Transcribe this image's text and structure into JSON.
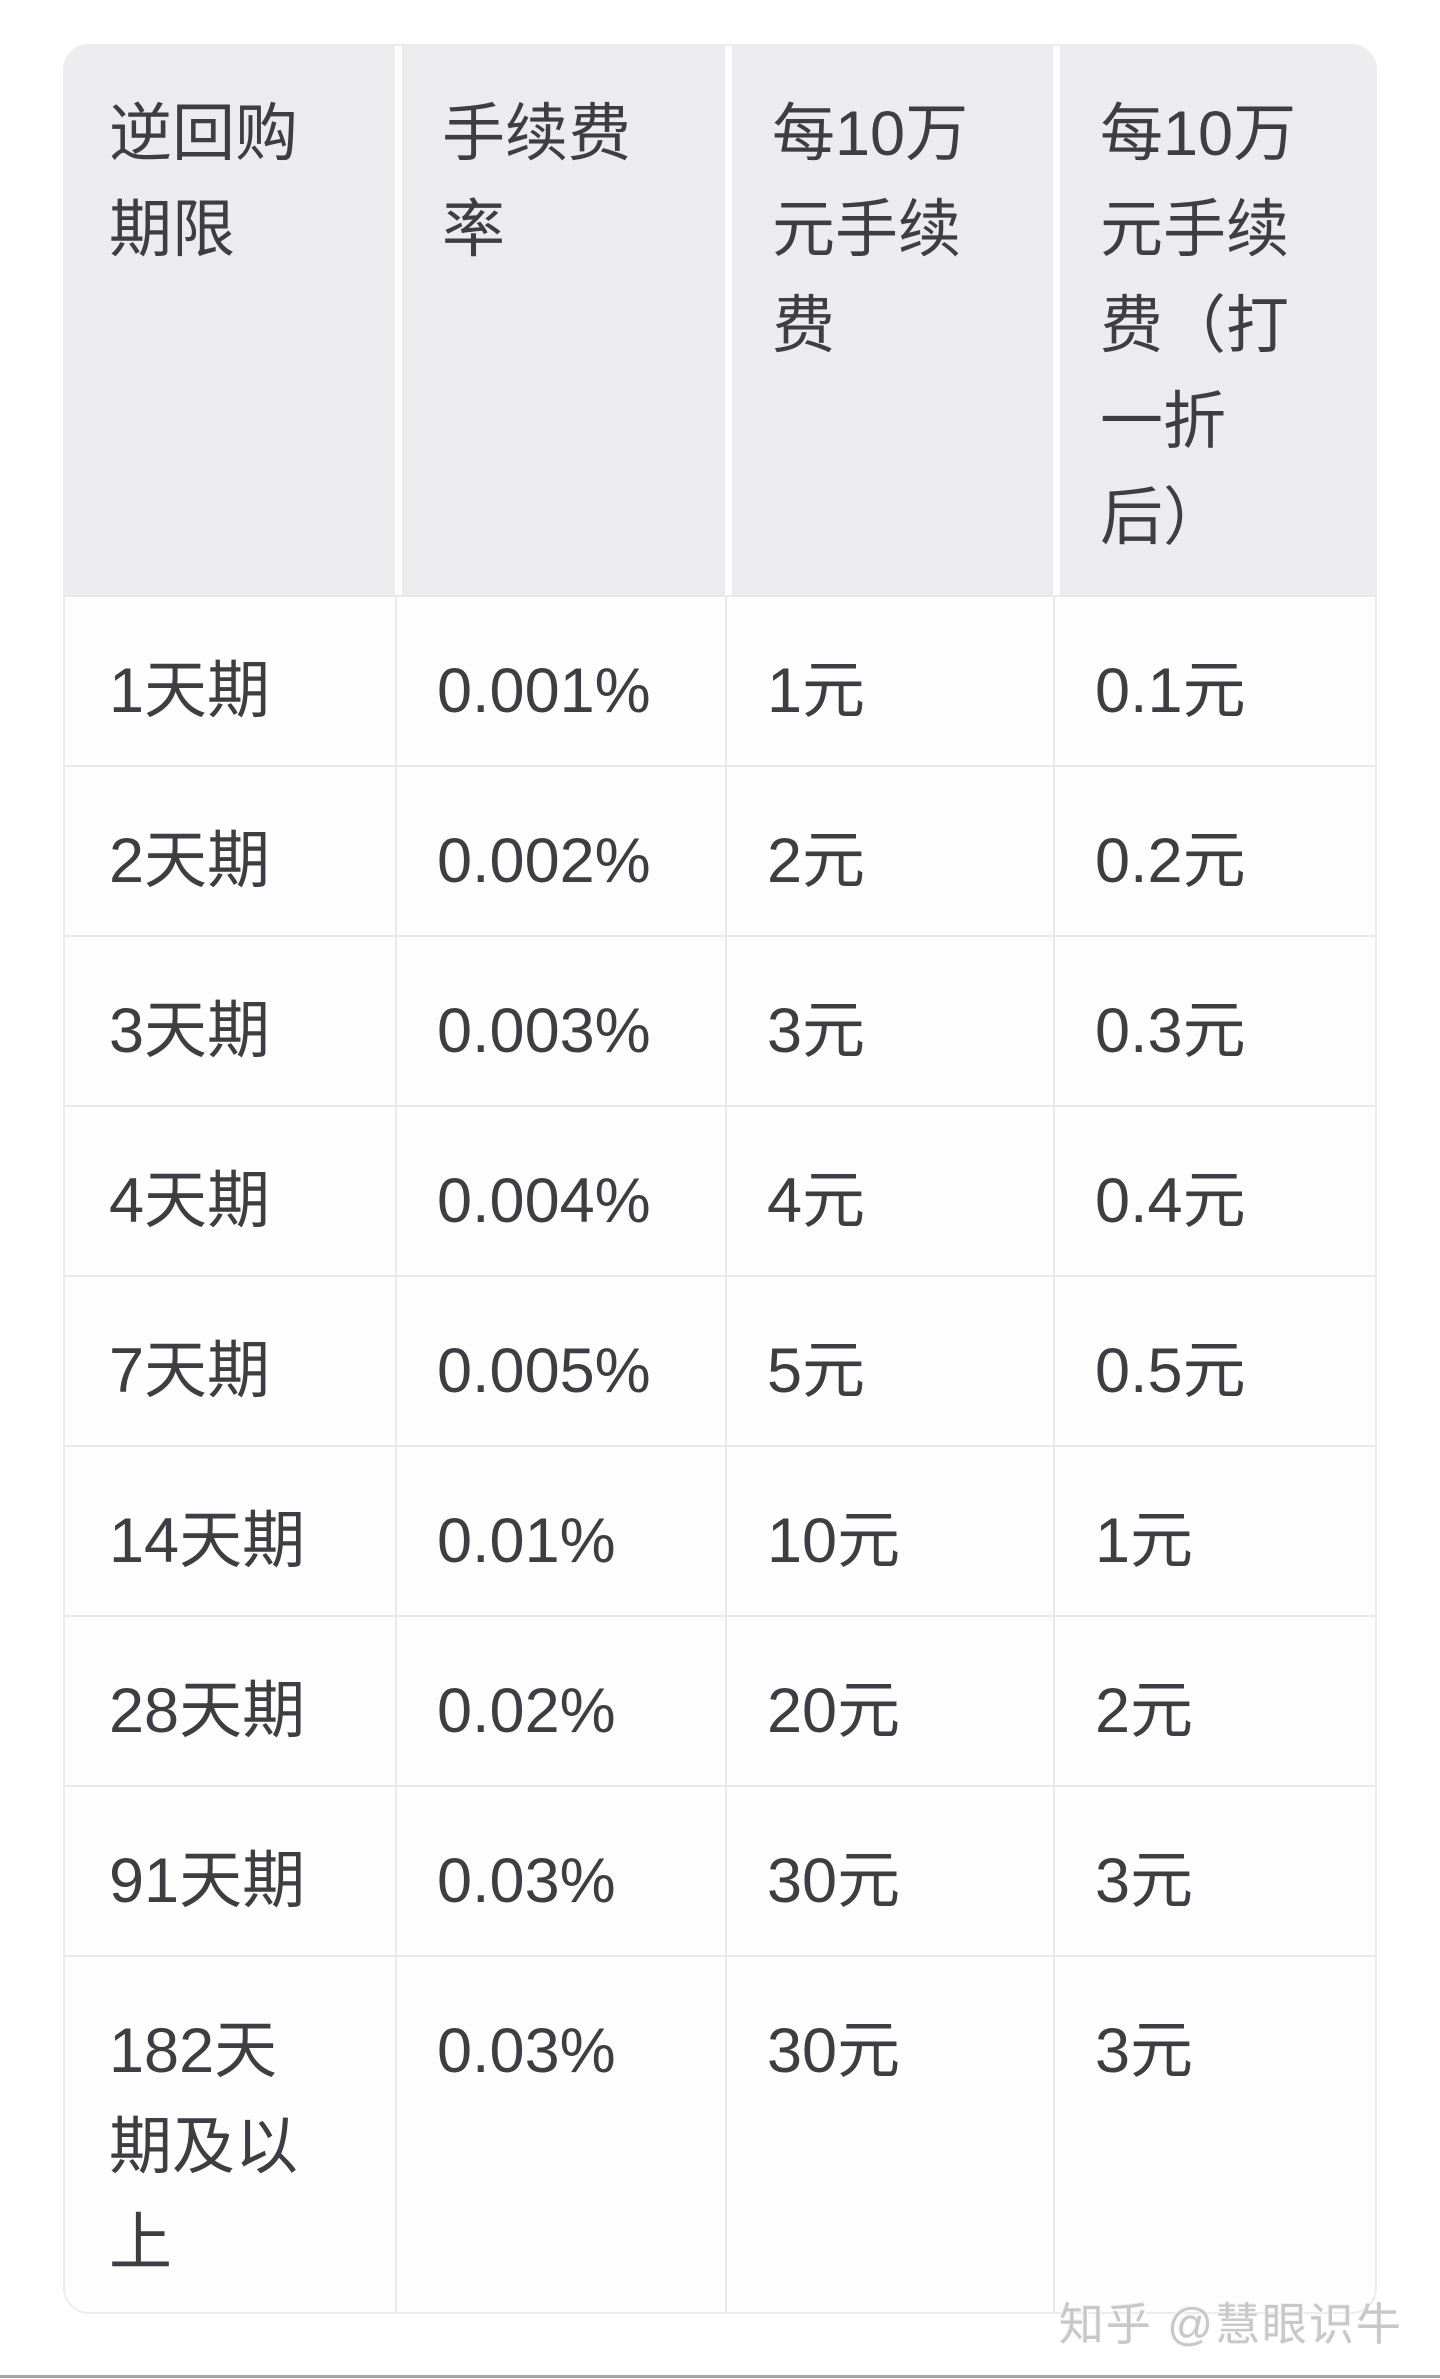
{
  "chart_data": {
    "type": "table",
    "title": "",
    "columns": [
      "逆回购期限",
      "手续费率",
      "每10万元手续费",
      "每10万元手续费（打一折后）"
    ],
    "rows": [
      [
        "1天期",
        "0.001%",
        "1元",
        "0.1元"
      ],
      [
        "2天期",
        "0.002%",
        "2元",
        "0.2元"
      ],
      [
        "3天期",
        "0.003%",
        "3元",
        "0.3元"
      ],
      [
        "4天期",
        "0.004%",
        "4元",
        "0.4元"
      ],
      [
        "7天期",
        "0.005%",
        "5元",
        "0.5元"
      ],
      [
        "14天期",
        "0.01%",
        "10元",
        "1元"
      ],
      [
        "28天期",
        "0.02%",
        "20元",
        "2元"
      ],
      [
        "91天期",
        "0.03%",
        "30元",
        "3元"
      ],
      [
        "182天期及以上",
        "0.03%",
        "30元",
        "3元"
      ]
    ],
    "watermark": "知乎 @慧眼识牛"
  },
  "table": {
    "headers": [
      "逆回购\n期限",
      "手续费\n率",
      "每10万\n元手续\n费",
      "每10万\n元手续\n费（打\n一折\n后）"
    ],
    "rows": [
      {
        "cells": [
          "1天期",
          "0.001%",
          "1元",
          "0.1元"
        ]
      },
      {
        "cells": [
          "2天期",
          "0.002%",
          "2元",
          "0.2元"
        ]
      },
      {
        "cells": [
          "3天期",
          "0.003%",
          "3元",
          "0.3元"
        ]
      },
      {
        "cells": [
          "4天期",
          "0.004%",
          "4元",
          "0.4元"
        ]
      },
      {
        "cells": [
          "7天期",
          "0.005%",
          "5元",
          "0.5元"
        ]
      },
      {
        "cells": [
          "14天期",
          "0.01%",
          "10元",
          "1元"
        ]
      },
      {
        "cells": [
          "28天期",
          "0.02%",
          "20元",
          "2元"
        ]
      },
      {
        "cells": [
          "91天期",
          "0.03%",
          "30元",
          "3元"
        ]
      },
      {
        "cells": [
          "182天\n期及以\n上",
          "0.03%",
          "30元",
          "3元"
        ],
        "tall": true
      }
    ]
  },
  "watermark": {
    "text": "知乎 @慧眼识牛"
  },
  "colors": {
    "page_bg": "#ffffff",
    "header_bg": "#ececee",
    "cell_bg": "#fdfdfd",
    "grid_line": "#e9e9eb",
    "text": "#3d3d42",
    "watermark": "#c8c8c8",
    "bottom_bar": "#a6a6aa"
  }
}
